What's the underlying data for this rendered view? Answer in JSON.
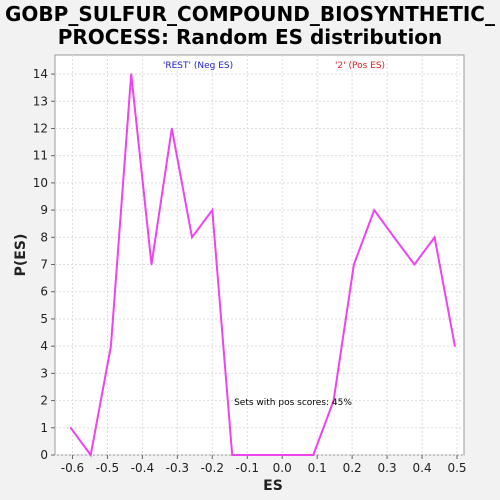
{
  "chart_data": {
    "type": "line",
    "title_line1": "GOBP_SULFUR_COMPOUND_BIOSYNTHETIC_",
    "title_line2": "PROCESS: Random ES distribution",
    "xlabel": "ES",
    "ylabel": "P(ES)",
    "xlim": [
      -0.65,
      0.52
    ],
    "ylim": [
      0,
      14.7
    ],
    "x_ticks": [
      -0.6,
      -0.5,
      -0.4,
      -0.3,
      -0.2,
      -0.1,
      0.0,
      0.1,
      0.2,
      0.3,
      0.4,
      0.5
    ],
    "x_tick_labels": [
      "-0.6",
      "-0.5",
      "-0.4",
      "-0.3",
      "-0.2",
      "-0.1",
      "0.0",
      "0.1",
      "0.2",
      "0.3",
      "0.4",
      "0.5"
    ],
    "y_ticks": [
      0,
      1,
      2,
      3,
      4,
      5,
      6,
      7,
      8,
      9,
      10,
      11,
      12,
      13,
      14
    ],
    "y_tick_labels": [
      "0",
      "1",
      "2",
      "3",
      "4",
      "5",
      "6",
      "7",
      "8",
      "9",
      "10",
      "11",
      "12",
      "13",
      "14"
    ],
    "grid": true,
    "series": [
      {
        "color": "#ee44ee",
        "x": [
          -0.605,
          -0.548,
          -0.49,
          -0.432,
          -0.374,
          -0.316,
          -0.258,
          -0.2,
          -0.143,
          -0.085,
          -0.027,
          0.031,
          0.089,
          0.147,
          0.205,
          0.263,
          0.32,
          0.378,
          0.436,
          0.494
        ],
        "y": [
          1,
          0,
          4,
          14,
          7,
          12,
          8,
          9,
          0,
          0,
          0,
          0,
          0,
          2,
          7,
          9,
          8,
          7,
          8,
          4
        ]
      }
    ],
    "legend": {
      "neg_label": "'REST' (Neg ES)",
      "neg_color": "#2222cc",
      "pos_label": "'2' (Pos ES)",
      "pos_color": "#dd2222"
    },
    "annotation": "Sets with pos scores: 45%"
  }
}
